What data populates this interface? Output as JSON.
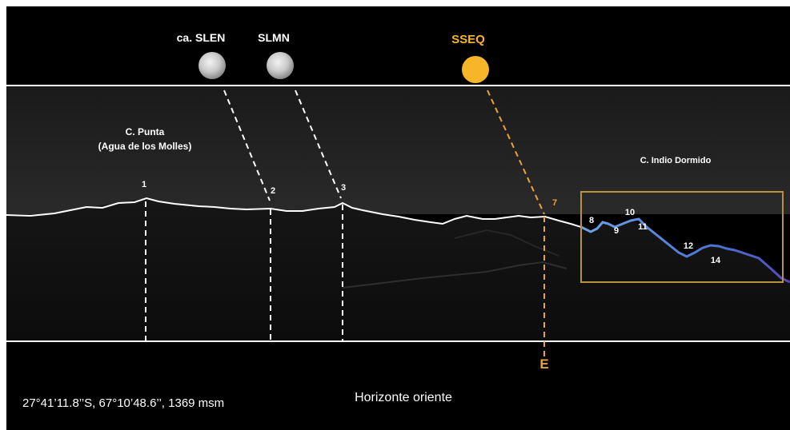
{
  "celestial": [
    {
      "label": "ca. SLEN",
      "body": "moon",
      "marker": "2"
    },
    {
      "label": "SLMN",
      "body": "moon",
      "marker": "3"
    },
    {
      "label": "SSEQ",
      "body": "sun",
      "marker": "7"
    }
  ],
  "places": {
    "punta_line1": "C. Punta",
    "punta_line2": "(Agua de los Molles)",
    "indio": "C. Indio Dormido"
  },
  "markers": [
    "1",
    "2",
    "3",
    "7",
    "8",
    "9",
    "10",
    "11",
    "12",
    "14"
  ],
  "direction": "E",
  "coords": "27°41’11.8’’S, 67°10’48.6’’, 1369 msm",
  "caption": "Horizonte oriente",
  "colors": {
    "background": "#000000",
    "frame_line": "#ffffff",
    "horizon": "#ffffff",
    "horizon_indio": "#5b8fd6",
    "sun": "#f7b52a",
    "solar_line": "#e8a33a",
    "moon_line": "#ffffff",
    "box": "#b8923c"
  }
}
